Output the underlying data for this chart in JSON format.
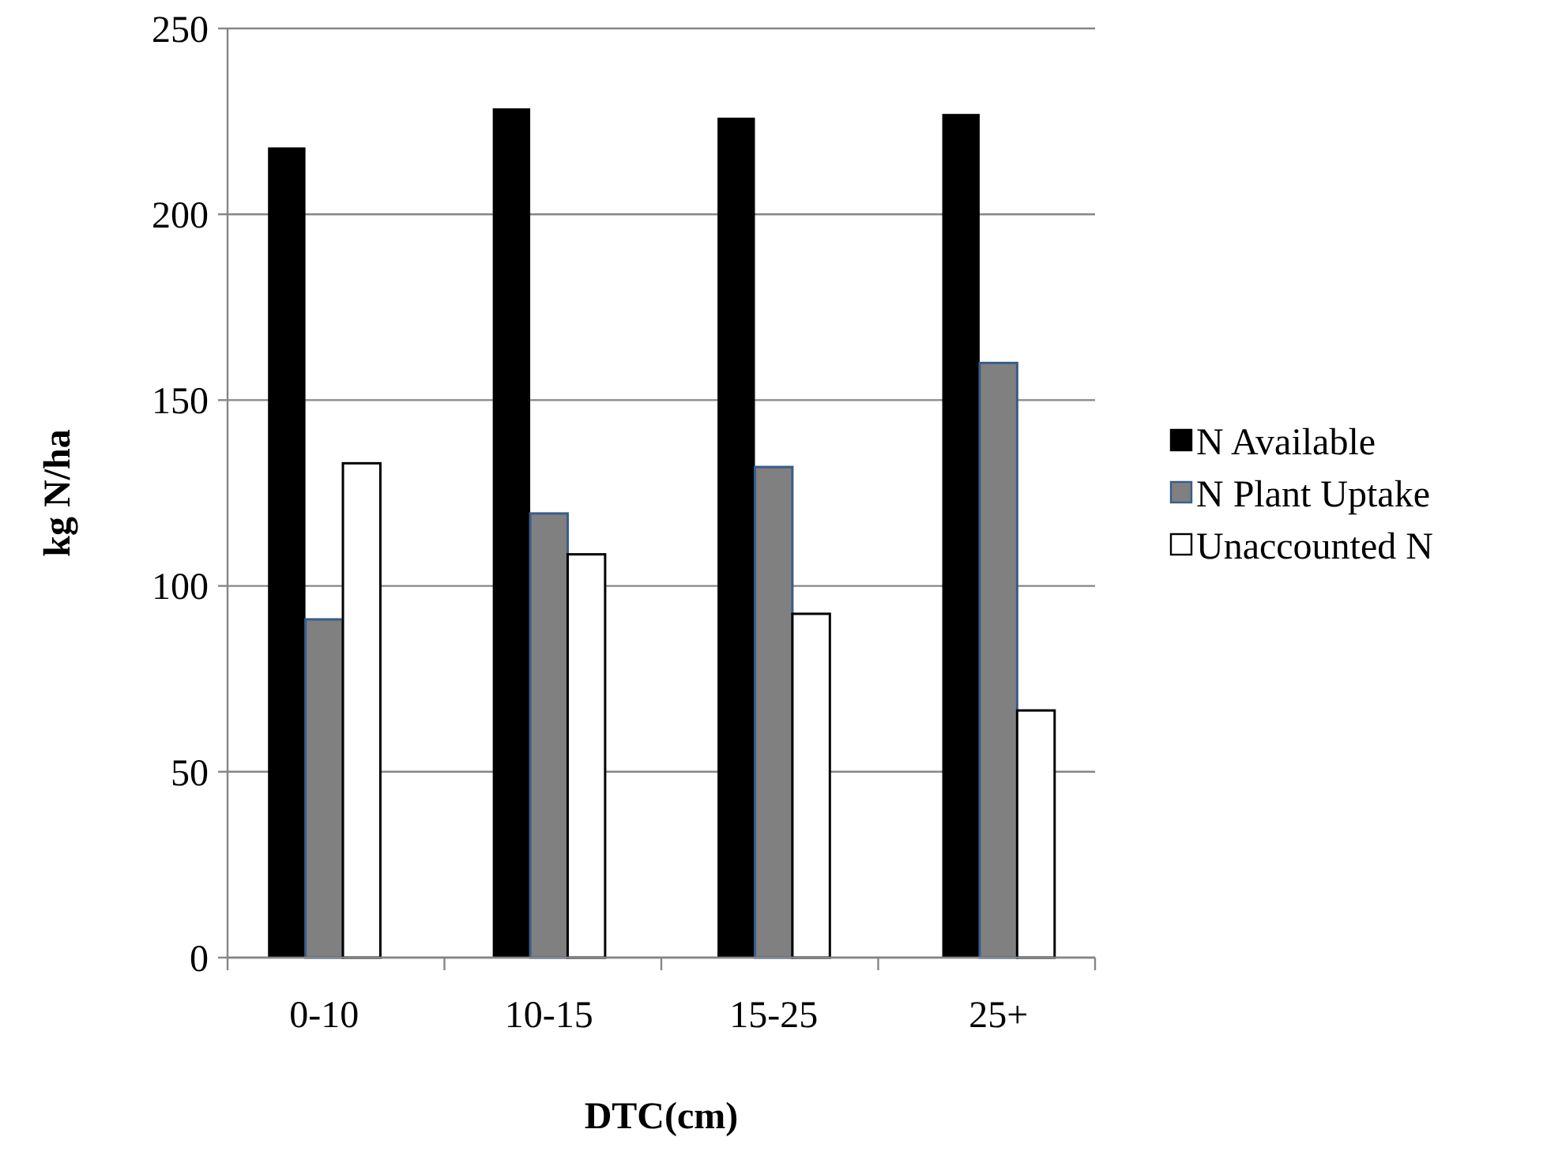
{
  "chart_data": {
    "type": "bar",
    "xlabel": "DTC(cm)",
    "ylabel": "kg N/ha",
    "categories": [
      "0-10",
      "10-15",
      "15-25",
      "25+"
    ],
    "series": [
      {
        "name": "N Available",
        "color": "#000000",
        "values": [
          218,
          228.5,
          226,
          227
        ]
      },
      {
        "name": "N Plant Uptake",
        "color": "#808080",
        "values": [
          91,
          119.5,
          132,
          160
        ]
      },
      {
        "name": "Unaccounted N",
        "color": "#ffffff",
        "values": [
          133,
          108.5,
          92.5,
          66.5
        ]
      }
    ],
    "ylim": [
      0,
      250
    ],
    "yticks": [
      0,
      50,
      100,
      150,
      200,
      250
    ],
    "grid": "y",
    "legend": "right"
  }
}
